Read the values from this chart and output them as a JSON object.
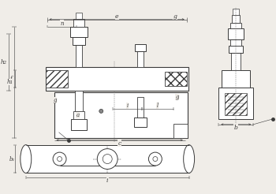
{
  "bg_color": "#f0ede8",
  "lc": "#3a3a3a",
  "dc": "#3a3a3a",
  "fig_width": 3.5,
  "fig_height": 2.46,
  "dpi": 100,
  "labels": {
    "e": "e",
    "g": "g",
    "n": "n",
    "f": "f",
    "h2": "h₂",
    "h1": "h₁",
    "a": "a",
    "i": "i",
    "l": "l",
    "c": "c",
    "b1": "b₁",
    "b": "b"
  }
}
